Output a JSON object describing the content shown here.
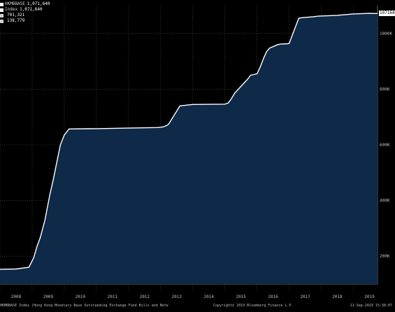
{
  "legend": {
    "header": "HKMBBASE",
    "rows": [
      {
        "name": "HKMBBASE",
        "value": "1,071,640",
        "color": "#ffffff"
      },
      {
        "name": "Index",
        "value": "1,071,640",
        "color": "#ffffff"
      },
      {
        "name": "",
        "value": "701,321",
        "color": "#d0d0d0"
      },
      {
        "name": "",
        "value": "138,779",
        "color": "#d0d0d0"
      }
    ]
  },
  "last_value_label": "1071640",
  "footer": {
    "left": "HKMBBASE Index (Hong Kong Monetary Base Outstanding Exchange Fund Bills and Note",
    "center": "Copyright© 2019 Bloomberg Finance L.P.",
    "right": "11-Sep-2019 15:38:07"
  },
  "colors": {
    "background": "#000000",
    "fill": "#0f2948",
    "line": "#ffffff"
  },
  "chart_data": {
    "type": "area",
    "title": "",
    "xlabel": "",
    "ylabel": "",
    "xlim": [
      2008.0,
      2019.75
    ],
    "ylim": [
      100000,
      1100000
    ],
    "y_axis_side": "right",
    "grid": true,
    "yticks": [
      {
        "value": 200000,
        "label": "200K"
      },
      {
        "value": 400000,
        "label": "400K"
      },
      {
        "value": 600000,
        "label": "600K"
      },
      {
        "value": 800000,
        "label": "800K"
      },
      {
        "value": 1000000,
        "label": "1000K"
      }
    ],
    "xticks": [
      {
        "value": 2008.5,
        "label": "2008"
      },
      {
        "value": 2009.5,
        "label": "2009"
      },
      {
        "value": 2010.5,
        "label": "2010"
      },
      {
        "value": 2011.5,
        "label": "2011"
      },
      {
        "value": 2012.5,
        "label": "2012"
      },
      {
        "value": 2013.5,
        "label": "2013"
      },
      {
        "value": 2014.5,
        "label": "2014"
      },
      {
        "value": 2015.5,
        "label": "2015"
      },
      {
        "value": 2016.5,
        "label": "2016"
      },
      {
        "value": 2017.5,
        "label": "2017"
      },
      {
        "value": 2018.5,
        "label": "2018"
      },
      {
        "value": 2019.5,
        "label": "2019"
      }
    ],
    "series": [
      {
        "name": "HKMBBASE",
        "x": [
          2008.0,
          2008.5,
          2008.9,
          2009.05,
          2009.15,
          2009.25,
          2009.4,
          2009.55,
          2009.65,
          2009.8,
          2009.88,
          2010.0,
          2010.15,
          2011.0,
          2012.0,
          2012.9,
          2013.0,
          2013.1,
          2013.2,
          2013.25,
          2013.6,
          2014.0,
          2015.0,
          2015.1,
          2015.2,
          2015.3,
          2015.5,
          2015.7,
          2015.8,
          2016.0,
          2016.1,
          2016.2,
          2016.3,
          2016.4,
          2016.55,
          2016.65,
          2016.75,
          2016.95,
          2017.0,
          2017.3,
          2017.45,
          2017.55,
          2017.75,
          2017.9,
          2018.5,
          2019.0,
          2019.5,
          2019.75
        ],
        "values": [
          153000,
          154000,
          160000,
          195000,
          235000,
          265000,
          330000,
          420000,
          470000,
          555000,
          600000,
          635000,
          657000,
          658000,
          660000,
          662000,
          663000,
          665000,
          670000,
          675000,
          740000,
          745000,
          746000,
          750000,
          765000,
          785000,
          810000,
          835000,
          850000,
          855000,
          880000,
          910000,
          935000,
          948000,
          955000,
          960000,
          962000,
          963000,
          964000,
          1055000,
          1057000,
          1058000,
          1060000,
          1062000,
          1065000,
          1070000,
          1072000,
          1071640
        ]
      }
    ]
  }
}
